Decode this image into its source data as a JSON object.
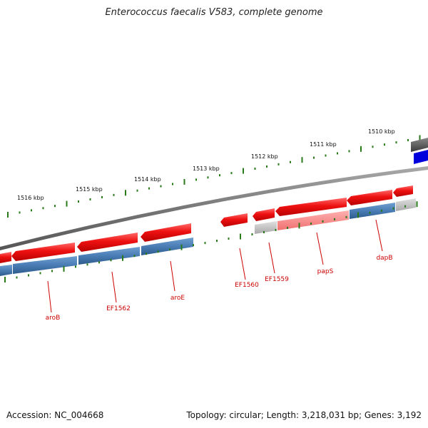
{
  "title": "Enterococcus faecalis V583, complete genome",
  "footer": {
    "accession": "Accession: NC_004668",
    "stats": "Topology: circular; Length: 3,218,031 bp; Genes: 3,192"
  },
  "colors": {
    "backbone": "#8a8a8a",
    "cds_forward": "#ee1111",
    "cds_forward_light": "#ff7777",
    "gene_bar": "#4a7db5",
    "gene_bar_light": "#c8c8c8",
    "highlight_feature": "#0000dd",
    "dark_feature": "#555555",
    "tick": "#2a7a1a",
    "label_kbp": "#111111",
    "gene_label": "#cc0000"
  },
  "scale": {
    "ticks": [
      {
        "label": "1516 kbp"
      },
      {
        "label": "1515 kbp"
      },
      {
        "label": "1514 kbp"
      },
      {
        "label": "1513 kbp"
      },
      {
        "label": "1512 kbp"
      },
      {
        "label": "1511 kbp"
      },
      {
        "label": "1510 kbp"
      }
    ]
  },
  "genes": [
    {
      "name": "aroB"
    },
    {
      "name": "EF1562"
    },
    {
      "name": "aroE"
    },
    {
      "name": "EF1560"
    },
    {
      "name": "EF1559"
    },
    {
      "name": "papS"
    },
    {
      "name": "dapB"
    }
  ]
}
